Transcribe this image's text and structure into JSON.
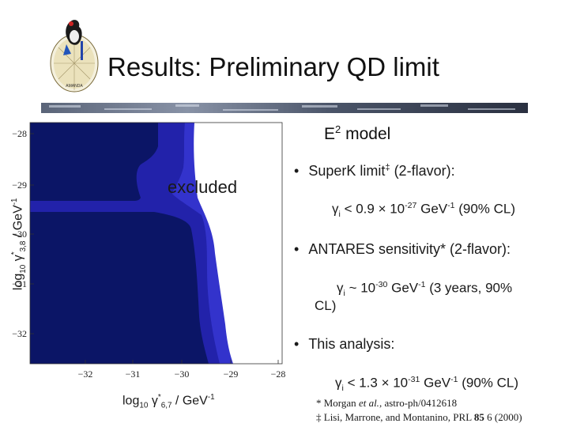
{
  "slide": {
    "title": "Results: Preliminary QD limit",
    "model_label": "E",
    "model_exp": "2",
    "model_suffix": " model",
    "logo_text": "AMANDA"
  },
  "plot": {
    "excluded_label": "excluded",
    "y_ticks": [
      "−28",
      "−29",
      "−30",
      "−31",
      "−32"
    ],
    "x_ticks": [
      "−32",
      "−31",
      "−30",
      "−29",
      "−28"
    ],
    "colors": {
      "outer": "#3333cc",
      "mid": "#2222aa",
      "inner": "#0b1566",
      "background": "#ffffff"
    }
  },
  "ylabel": {
    "a": "log",
    "a_sub": "10",
    "b": " γ",
    "b_sup": "*",
    "b_sub": "3,8",
    "c": " / GeV",
    "c_sup": "-1"
  },
  "xlabel": {
    "a": "log",
    "a_sub": "10",
    "b": " γ",
    "b_sup": "*",
    "b_sub": "6,7",
    "c": "  / GeV",
    "c_sup": "-1"
  },
  "bullets": {
    "b1": {
      "text": "SuperK limit",
      "mark": "‡",
      "tail": " (2-flavor):"
    },
    "b1_sub": {
      "sym": "γ",
      "symsub": "i",
      "a": " < 0.9 × 10",
      "exp": "-27",
      "b": " GeV",
      "unitexp": "-1",
      "c": "  (90% CL)"
    },
    "b2": {
      "text": "ANTARES sensitivity* (2-flavor):"
    },
    "b2_sub": {
      "sym": "γ",
      "symsub": "i",
      "a": " ~ 10",
      "exp": "-30",
      "b": " GeV",
      "unitexp": "-1",
      "c": " (3 years, 90%",
      "d": "CL)"
    },
    "b3": {
      "text": "This analysis:"
    },
    "b3_sub": {
      "sym": "γ",
      "symsub": "i",
      "a": " < 1.3 × 10",
      "exp": "-31",
      "b": " GeV",
      "unitexp": "-1",
      "c": " (90% CL)"
    }
  },
  "footnotes": {
    "f1a": "* Morgan ",
    "f1b": "et al.",
    "f1c": ", astro-ph/0412618",
    "f2a": "‡ Lisi, Marrone, and Montanino, PRL ",
    "f2b": "85",
    "f2c": " 6 (2000)"
  },
  "bullet_glyph": "•"
}
